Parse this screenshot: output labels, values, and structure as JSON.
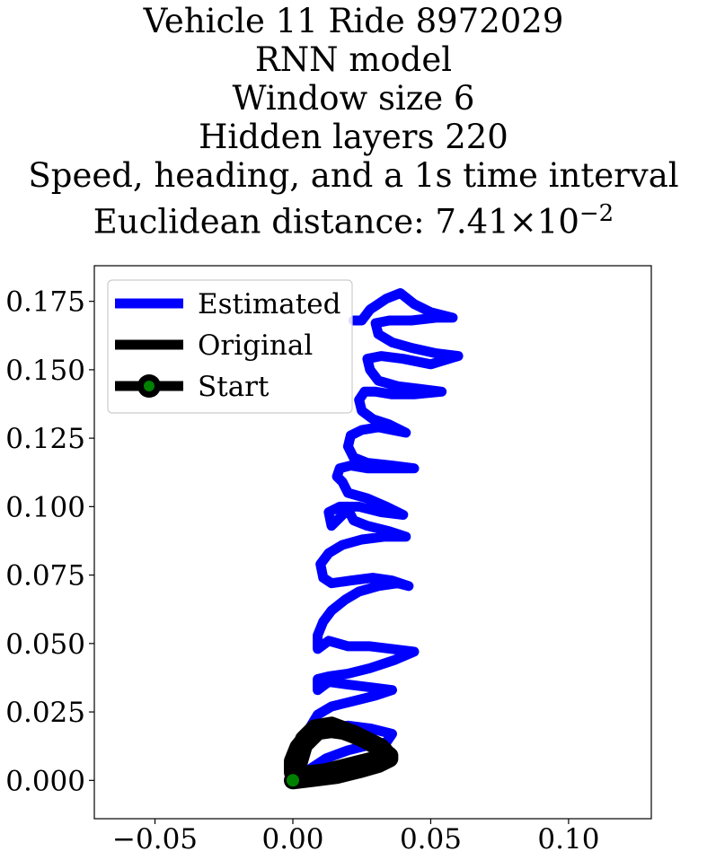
{
  "colors": {
    "estimated": "#0000ff",
    "original": "#000000",
    "start_marker": "#008000"
  },
  "chart_data": {
    "type": "line",
    "title_lines": [
      "Vehicle 11 Ride 8972029",
      "RNN model",
      "Window size 6",
      "Hidden layers 220",
      "Speed, heading, and a 1s time interval"
    ],
    "metric": {
      "prefix": "Euclidean distance: ",
      "mantissa": "7.41",
      "times": "×",
      "base": "10",
      "exponent": "−2"
    },
    "xlim": [
      -0.072,
      0.13
    ],
    "ylim": [
      -0.014,
      0.188
    ],
    "x_ticks": [
      -0.05,
      0.0,
      0.05,
      0.1
    ],
    "x_tick_labels": [
      "−0.05",
      "0.00",
      "0.05",
      "0.10"
    ],
    "y_ticks": [
      0.0,
      0.025,
      0.05,
      0.075,
      0.1,
      0.125,
      0.15,
      0.175
    ],
    "y_tick_labels": [
      "0.000",
      "0.025",
      "0.050",
      "0.075",
      "0.100",
      "0.125",
      "0.150",
      "0.175"
    ],
    "legend": [
      {
        "key": "estimated",
        "label": "Estimated"
      },
      {
        "key": "original",
        "label": "Original"
      },
      {
        "key": "start",
        "label": "Start"
      }
    ],
    "series": [
      {
        "name": "Estimated",
        "points": [
          [
            0.0,
            0.0
          ],
          [
            0.006,
            0.004
          ],
          [
            0.012,
            0.008
          ],
          [
            0.02,
            0.011
          ],
          [
            0.028,
            0.013
          ],
          [
            0.034,
            0.014
          ],
          [
            0.036,
            0.017
          ],
          [
            0.028,
            0.019
          ],
          [
            0.02,
            0.02
          ],
          [
            0.012,
            0.019
          ],
          [
            0.007,
            0.016
          ],
          [
            0.006,
            0.019
          ],
          [
            0.009,
            0.024
          ],
          [
            0.014,
            0.027
          ],
          [
            0.022,
            0.029
          ],
          [
            0.03,
            0.031
          ],
          [
            0.036,
            0.033
          ],
          [
            0.028,
            0.034
          ],
          [
            0.02,
            0.035
          ],
          [
            0.013,
            0.036
          ],
          [
            0.009,
            0.033
          ],
          [
            0.009,
            0.037
          ],
          [
            0.013,
            0.038
          ],
          [
            0.02,
            0.039
          ],
          [
            0.028,
            0.041
          ],
          [
            0.037,
            0.044
          ],
          [
            0.044,
            0.047
          ],
          [
            0.036,
            0.048
          ],
          [
            0.028,
            0.049
          ],
          [
            0.02,
            0.049
          ],
          [
            0.013,
            0.051
          ],
          [
            0.009,
            0.048
          ],
          [
            0.009,
            0.053
          ],
          [
            0.011,
            0.058
          ],
          [
            0.014,
            0.062
          ],
          [
            0.019,
            0.066
          ],
          [
            0.024,
            0.069
          ],
          [
            0.031,
            0.071
          ],
          [
            0.038,
            0.072
          ],
          [
            0.042,
            0.071
          ],
          [
            0.036,
            0.073
          ],
          [
            0.029,
            0.074
          ],
          [
            0.021,
            0.073
          ],
          [
            0.014,
            0.072
          ],
          [
            0.011,
            0.074
          ],
          [
            0.01,
            0.079
          ],
          [
            0.013,
            0.083
          ],
          [
            0.018,
            0.086
          ],
          [
            0.025,
            0.088
          ],
          [
            0.033,
            0.089
          ],
          [
            0.041,
            0.089
          ],
          [
            0.035,
            0.091
          ],
          [
            0.027,
            0.093
          ],
          [
            0.022,
            0.095
          ],
          [
            0.02,
            0.099
          ],
          [
            0.017,
            0.096
          ],
          [
            0.014,
            0.093
          ],
          [
            0.013,
            0.098
          ],
          [
            0.017,
            0.1
          ],
          [
            0.024,
            0.1
          ],
          [
            0.032,
            0.098
          ],
          [
            0.04,
            0.097
          ],
          [
            0.034,
            0.1
          ],
          [
            0.027,
            0.103
          ],
          [
            0.02,
            0.105
          ],
          [
            0.018,
            0.109
          ],
          [
            0.016,
            0.111
          ],
          [
            0.017,
            0.114
          ],
          [
            0.021,
            0.115
          ],
          [
            0.027,
            0.114
          ],
          [
            0.034,
            0.114
          ],
          [
            0.044,
            0.114
          ],
          [
            0.036,
            0.115
          ],
          [
            0.027,
            0.116
          ],
          [
            0.022,
            0.118
          ],
          [
            0.02,
            0.122
          ],
          [
            0.021,
            0.126
          ],
          [
            0.025,
            0.128
          ],
          [
            0.031,
            0.129
          ],
          [
            0.036,
            0.128
          ],
          [
            0.041,
            0.127
          ],
          [
            0.035,
            0.13
          ],
          [
            0.029,
            0.132
          ],
          [
            0.025,
            0.135
          ],
          [
            0.024,
            0.139
          ],
          [
            0.026,
            0.142
          ],
          [
            0.03,
            0.142
          ],
          [
            0.036,
            0.141
          ],
          [
            0.044,
            0.141
          ],
          [
            0.054,
            0.142
          ],
          [
            0.046,
            0.143
          ],
          [
            0.038,
            0.144
          ],
          [
            0.031,
            0.146
          ],
          [
            0.028,
            0.15
          ],
          [
            0.027,
            0.154
          ],
          [
            0.032,
            0.155
          ],
          [
            0.04,
            0.154
          ],
          [
            0.05,
            0.152
          ],
          [
            0.06,
            0.155
          ],
          [
            0.052,
            0.156
          ],
          [
            0.043,
            0.158
          ],
          [
            0.036,
            0.16
          ],
          [
            0.031,
            0.163
          ],
          [
            0.03,
            0.167
          ],
          [
            0.035,
            0.168
          ],
          [
            0.043,
            0.168
          ],
          [
            0.052,
            0.169
          ],
          [
            0.058,
            0.169
          ],
          [
            0.05,
            0.171
          ],
          [
            0.044,
            0.174
          ],
          [
            0.039,
            0.178
          ],
          [
            0.034,
            0.176
          ],
          [
            0.028,
            0.172
          ],
          [
            0.025,
            0.168
          ],
          [
            0.022,
            0.168
          ]
        ]
      },
      {
        "name": "Original",
        "points": [
          [
            0.0,
            0.0
          ],
          [
            0.008,
            0.001
          ],
          [
            0.016,
            0.002
          ],
          [
            0.024,
            0.004
          ],
          [
            0.031,
            0.006
          ],
          [
            0.035,
            0.008
          ],
          [
            0.033,
            0.011
          ],
          [
            0.026,
            0.015
          ],
          [
            0.019,
            0.018
          ],
          [
            0.012,
            0.019
          ],
          [
            0.006,
            0.017
          ],
          [
            0.002,
            0.012
          ],
          [
            0.0,
            0.007
          ],
          [
            0.0,
            0.003
          ],
          [
            0.003,
            0.001
          ],
          [
            0.01,
            0.002
          ],
          [
            0.018,
            0.004
          ],
          [
            0.026,
            0.006
          ],
          [
            0.032,
            0.007
          ],
          [
            0.035,
            0.009
          ],
          [
            0.03,
            0.013
          ],
          [
            0.022,
            0.017
          ],
          [
            0.014,
            0.02
          ],
          [
            0.008,
            0.019
          ],
          [
            0.004,
            0.015
          ],
          [
            0.002,
            0.009
          ],
          [
            0.001,
            0.004
          ],
          [
            0.004,
            0.002
          ],
          [
            0.012,
            0.003
          ],
          [
            0.02,
            0.005
          ],
          [
            0.028,
            0.007
          ],
          [
            0.034,
            0.008
          ],
          [
            0.032,
            0.012
          ],
          [
            0.024,
            0.016
          ],
          [
            0.016,
            0.019
          ],
          [
            0.009,
            0.018
          ],
          [
            0.004,
            0.013
          ],
          [
            0.002,
            0.006
          ],
          [
            0.0,
            0.0
          ]
        ]
      }
    ],
    "start_point": [
      0.0,
      0.0
    ]
  }
}
